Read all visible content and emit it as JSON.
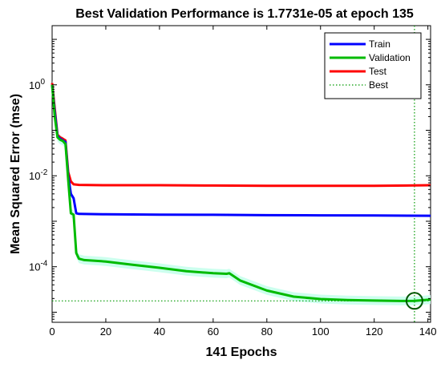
{
  "chart_data": {
    "type": "line",
    "title": "Best Validation Performance is 1.7731e-05 at epoch 135",
    "xlabel": "141 Epochs",
    "ylabel": "Mean Squared Error  (mse)",
    "xlim": [
      0,
      141
    ],
    "ylim": [
      6e-06,
      20
    ],
    "yscale": "log",
    "grid": false,
    "legend_position": "top-right",
    "x_ticks": [
      0,
      20,
      40,
      60,
      80,
      100,
      120,
      140
    ],
    "y_ticks": [
      {
        "value": 1,
        "base": "10",
        "exp": "0"
      },
      {
        "value": 0.01,
        "base": "10",
        "exp": "-2"
      },
      {
        "value": 0.0001,
        "base": "10",
        "exp": "-4"
      }
    ],
    "series": [
      {
        "name": "Train",
        "color": "#0000ff",
        "x": [
          0,
          1,
          2,
          3,
          4,
          5,
          6,
          7,
          8,
          9,
          10,
          20,
          40,
          60,
          80,
          100,
          120,
          141
        ],
        "y": [
          1.0,
          0.25,
          0.075,
          0.065,
          0.06,
          0.055,
          0.01,
          0.004,
          0.0032,
          0.0015,
          0.00145,
          0.00142,
          0.0014,
          0.00139,
          0.00136,
          0.00135,
          0.00134,
          0.00132
        ]
      },
      {
        "name": "Validation",
        "color": "#00bb00",
        "x": [
          0,
          1,
          2,
          3,
          4,
          5,
          6,
          7,
          8,
          9,
          10,
          12,
          20,
          30,
          40,
          50,
          60,
          65,
          66,
          70,
          80,
          90,
          100,
          110,
          120,
          130,
          135,
          141
        ],
        "y": [
          1.0,
          0.2,
          0.07,
          0.062,
          0.058,
          0.05,
          0.008,
          0.0015,
          0.0014,
          0.0002,
          0.00015,
          0.00014,
          0.00013,
          0.00011,
          9.5e-05,
          8e-05,
          7.2e-05,
          7e-05,
          7.2e-05,
          5e-05,
          3e-05,
          2.2e-05,
          1.95e-05,
          1.85e-05,
          1.8e-05,
          1.77e-05,
          1.7731e-05,
          1.9e-05
        ]
      },
      {
        "name": "Test",
        "color": "#ff0000",
        "x": [
          0,
          1,
          2,
          3,
          4,
          5,
          6,
          7,
          8,
          10,
          20,
          40,
          60,
          80,
          100,
          120,
          141
        ],
        "y": [
          1.1,
          0.3,
          0.08,
          0.07,
          0.065,
          0.06,
          0.012,
          0.0075,
          0.0065,
          0.0063,
          0.0062,
          0.0062,
          0.0061,
          0.006,
          0.006,
          0.006,
          0.0062
        ]
      }
    ],
    "best": {
      "name": "Best",
      "color": "#009900",
      "epoch": 135,
      "value": 1.7731e-05
    }
  }
}
